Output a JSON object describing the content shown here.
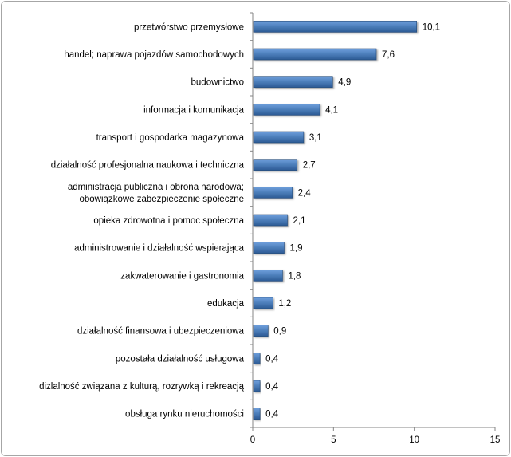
{
  "chart_data": {
    "type": "bar",
    "orientation": "horizontal",
    "categories": [
      [
        "przetwórstwo przemysłowe"
      ],
      [
        "handel; naprawa pojazdów samochodowych"
      ],
      [
        "budownictwo"
      ],
      [
        "informacja i komunikacja"
      ],
      [
        "transport i gospodarka magazynowa"
      ],
      [
        "działalność profesjonalna naukowa i techniczna"
      ],
      [
        "administracja publiczna i obrona narodowa;",
        "obowiązkowe zabezpieczenie społeczne"
      ],
      [
        "opieka zdrowotna i pomoc społeczna"
      ],
      [
        "administrowanie i działalność wspierająca"
      ],
      [
        "zakwaterowanie i gastronomia"
      ],
      [
        "edukacja"
      ],
      [
        "działalność finansowa i ubezpieczeniowa"
      ],
      [
        "pozostała działalność usługowa"
      ],
      [
        "dizlalność związana z kulturą, rozrywką i rekreacją"
      ],
      [
        "obsługa rynku nieruchomości"
      ]
    ],
    "values": [
      10.1,
      7.6,
      4.9,
      4.1,
      3.1,
      2.7,
      2.4,
      2.1,
      1.9,
      1.8,
      1.2,
      0.9,
      0.4,
      0.4,
      0.4
    ],
    "value_labels": [
      "10,1",
      "7,6",
      "4,9",
      "4,1",
      "3,1",
      "2,7",
      "2,4",
      "2,1",
      "1,9",
      "1,8",
      "1,2",
      "0,9",
      "0,4",
      "0,4",
      "0,4"
    ],
    "x_ticks": [
      0,
      5,
      10,
      15
    ],
    "x_tick_labels": [
      "0",
      "5",
      "10",
      "15"
    ],
    "xlim": [
      0,
      15
    ],
    "title": "",
    "xlabel": "",
    "ylabel": "",
    "grid": false,
    "legend": "none",
    "colors": {
      "bar_light": "#6f9fdc",
      "bar_mid": "#4f81bd",
      "bar_dark": "#2c5a94",
      "bar_border": "#244a78",
      "axis": "#868686"
    }
  }
}
